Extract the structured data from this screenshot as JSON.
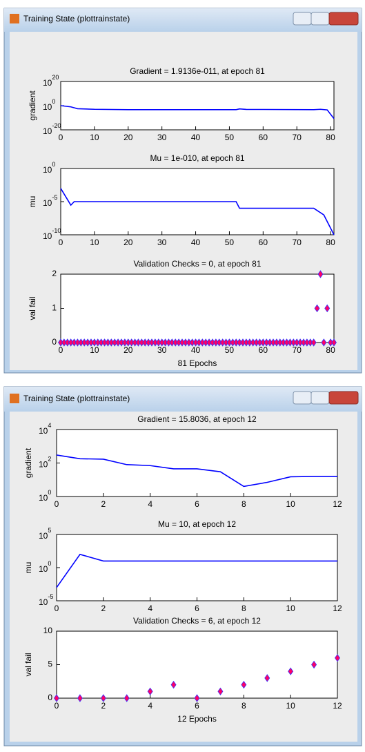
{
  "windows": [
    {
      "title": "Training State (plottrainstate)"
    },
    {
      "title": "Training State (plottrainstate)"
    }
  ],
  "chart_data": [
    {
      "type": "line",
      "title": "Gradient = 1.9136e-011, at epoch 81",
      "y_label": "gradient",
      "color": "#0000ff",
      "log_y": true,
      "x": [
        0,
        3,
        5,
        10,
        20,
        52,
        53,
        55,
        75,
        77,
        79,
        81
      ],
      "values": [
        1,
        0.1,
        0.003,
        0.001,
        0.0005,
        0.0005,
        0.002,
        0.0008,
        0.0005,
        0.001,
        0.0003,
        1.9136e-11
      ],
      "xlim": [
        0,
        81
      ],
      "xticks": [
        0,
        10,
        20,
        30,
        40,
        50,
        60,
        70,
        80
      ],
      "ylim": [
        1e-20,
        1e+20
      ],
      "yticks": [
        {
          "value": 1e-20,
          "label": "10",
          "exponent": "-20"
        },
        {
          "value": 1,
          "label": "10",
          "exponent": "0"
        },
        {
          "value": 1e+20,
          "label": "10",
          "exponent": "20"
        }
      ]
    },
    {
      "type": "line",
      "title": "Mu = 1e-010, at epoch 81",
      "y_label": "mu",
      "color": "#0000ff",
      "log_y": true,
      "x": [
        0,
        3,
        4,
        52,
        53,
        75,
        78,
        81
      ],
      "values": [
        0.001,
        3e-06,
        1e-05,
        1e-05,
        1e-06,
        1e-06,
        1e-07,
        1e-10
      ],
      "xlim": [
        0,
        81
      ],
      "xticks": [
        0,
        10,
        20,
        30,
        40,
        50,
        60,
        70,
        80
      ],
      "ylim": [
        1e-10,
        1
      ],
      "yticks": [
        {
          "value": 1e-10,
          "label": "10",
          "exponent": "-10"
        },
        {
          "value": 1e-05,
          "label": "10",
          "exponent": "-5"
        },
        {
          "value": 1,
          "label": "10",
          "exponent": "0"
        }
      ]
    },
    {
      "type": "scatter",
      "title": "Validation Checks = 0, at epoch 81",
      "y_label": "val fail",
      "x_label": "81 Epochs",
      "color": "#ff0066",
      "edge_color": "#3333ff",
      "x": [
        0,
        1,
        2,
        3,
        4,
        5,
        6,
        7,
        8,
        9,
        10,
        11,
        12,
        13,
        14,
        15,
        16,
        17,
        18,
        19,
        20,
        21,
        22,
        23,
        24,
        25,
        26,
        27,
        28,
        29,
        30,
        31,
        32,
        33,
        34,
        35,
        36,
        37,
        38,
        39,
        40,
        41,
        42,
        43,
        44,
        45,
        46,
        47,
        48,
        49,
        50,
        51,
        52,
        53,
        54,
        55,
        56,
        57,
        58,
        59,
        60,
        61,
        62,
        63,
        64,
        65,
        66,
        67,
        68,
        69,
        70,
        71,
        72,
        73,
        74,
        75,
        76,
        77,
        78,
        79,
        80,
        81
      ],
      "values": [
        0,
        0,
        0,
        0,
        0,
        0,
        0,
        0,
        0,
        0,
        0,
        0,
        0,
        0,
        0,
        0,
        0,
        0,
        0,
        0,
        0,
        0,
        0,
        0,
        0,
        0,
        0,
        0,
        0,
        0,
        0,
        0,
        0,
        0,
        0,
        0,
        0,
        0,
        0,
        0,
        0,
        0,
        0,
        0,
        0,
        0,
        0,
        0,
        0,
        0,
        0,
        0,
        0,
        0,
        0,
        0,
        0,
        0,
        0,
        0,
        0,
        0,
        0,
        0,
        0,
        0,
        0,
        0,
        0,
        0,
        0,
        0,
        0,
        0,
        0,
        0,
        1,
        2,
        0,
        1,
        0,
        0
      ],
      "xlim": [
        0,
        81
      ],
      "xticks": [
        0,
        10,
        20,
        30,
        40,
        50,
        60,
        70,
        80
      ],
      "ylim": [
        0,
        2
      ],
      "yticks": [
        0,
        1,
        2
      ]
    },
    {
      "type": "line",
      "title": "Gradient = 15.8036, at epoch 12",
      "y_label": "gradient",
      "color": "#0000ff",
      "log_y": true,
      "x": [
        0,
        1,
        2,
        3,
        4,
        5,
        6,
        7,
        8,
        9,
        10,
        11,
        12
      ],
      "values": [
        300,
        180,
        170,
        80,
        70,
        45,
        45,
        30,
        4,
        7,
        15,
        15.8,
        15.8036
      ],
      "xlim": [
        0,
        12
      ],
      "xticks": [
        0,
        2,
        4,
        6,
        8,
        10,
        12
      ],
      "ylim": [
        1,
        10000
      ],
      "yticks": [
        {
          "value": 1,
          "label": "10",
          "exponent": "0"
        },
        {
          "value": 100,
          "label": "10",
          "exponent": "2"
        },
        {
          "value": 10000,
          "label": "10",
          "exponent": "4"
        }
      ]
    },
    {
      "type": "line",
      "title": "Mu = 10, at epoch 12",
      "y_label": "mu",
      "color": "#0000ff",
      "log_y": true,
      "x": [
        0,
        1,
        2,
        3,
        4,
        5,
        6,
        7,
        8,
        9,
        10,
        11,
        12
      ],
      "values": [
        0.001,
        100,
        10,
        10,
        10,
        10,
        10,
        10,
        10,
        10,
        10,
        10,
        10
      ],
      "xlim": [
        0,
        12
      ],
      "xticks": [
        0,
        2,
        4,
        6,
        8,
        10,
        12
      ],
      "ylim": [
        1e-05,
        100000
      ],
      "yticks": [
        {
          "value": 1e-05,
          "label": "10",
          "exponent": "-5"
        },
        {
          "value": 1,
          "label": "10",
          "exponent": "0"
        },
        {
          "value": 100000,
          "label": "10",
          "exponent": "5"
        }
      ]
    },
    {
      "type": "scatter",
      "title": "Validation Checks = 6, at epoch 12",
      "y_label": "val fail",
      "x_label": "12 Epochs",
      "color": "#ff0066",
      "edge_color": "#3333ff",
      "x": [
        0,
        1,
        2,
        3,
        4,
        5,
        6,
        7,
        8,
        9,
        10,
        11,
        12
      ],
      "values": [
        0,
        0,
        0,
        0,
        1,
        2,
        0,
        1,
        2,
        3,
        4,
        5,
        6
      ],
      "xlim": [
        0,
        12
      ],
      "xticks": [
        0,
        2,
        4,
        6,
        8,
        10,
        12
      ],
      "ylim": [
        0,
        10
      ],
      "yticks": [
        0,
        5,
        10
      ]
    }
  ]
}
